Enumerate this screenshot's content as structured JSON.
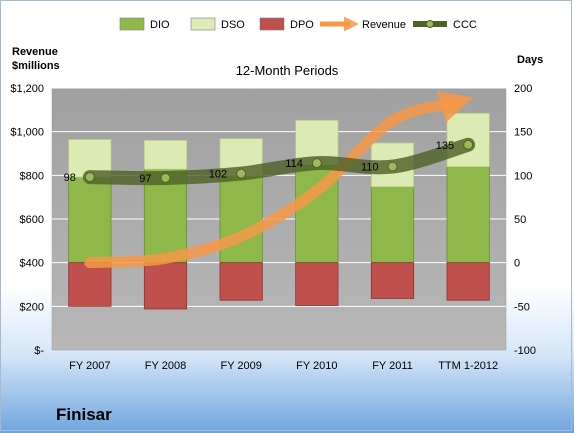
{
  "chart_data": {
    "type": "bar",
    "subtitle": "12-Month Periods",
    "company": "Finisar",
    "categories": [
      "FY 2007",
      "FY 2008",
      "FY 2009",
      "FY 2010",
      "FY 2011",
      "TTM 1-2012"
    ],
    "left_axis": {
      "label": "Revenue\n$millions",
      "ylim": [
        0,
        1200
      ],
      "ticks": [
        0,
        200,
        400,
        600,
        800,
        1000,
        1200
      ],
      "tick_labels": [
        "$-",
        "$200",
        "$400",
        "$600",
        "$800",
        "$1,000",
        "$1,200"
      ]
    },
    "right_axis": {
      "label": "Days",
      "ylim": [
        -100,
        200
      ],
      "ticks": [
        -100,
        -50,
        0,
        50,
        100,
        150,
        200
      ],
      "tick_labels": [
        "-100",
        "-50",
        "0",
        "50",
        "100",
        "150",
        "200"
      ]
    },
    "series": [
      {
        "name": "DIO",
        "kind": "stacked-bar",
        "axis": "right",
        "color": "#8fb84a",
        "values": [
          98,
          107,
          99,
          112,
          87,
          110
        ]
      },
      {
        "name": "DSO",
        "kind": "stacked-bar",
        "axis": "right",
        "color": "#dcebb4",
        "values": [
          43,
          33,
          43,
          51,
          50,
          61
        ]
      },
      {
        "name": "DPO",
        "kind": "negative-bar",
        "axis": "right",
        "color": "#c0504d",
        "values": [
          -50,
          -53,
          -43,
          -49,
          -41,
          -43
        ]
      },
      {
        "name": "Revenue",
        "kind": "arrow-line",
        "axis": "left",
        "color": "#f79646",
        "values": [
          400,
          420,
          520,
          730,
          1050,
          1140
        ]
      },
      {
        "name": "CCC",
        "kind": "line",
        "axis": "right",
        "color": "#4f6228",
        "values": [
          98,
          97,
          102,
          114,
          110,
          135
        ]
      }
    ],
    "data_labels": [
      "98",
      "97",
      "102",
      "114",
      "110",
      "135"
    ],
    "legend_position": "top",
    "grid": true,
    "colors": {
      "plot_background": "#a6a6a6",
      "gridline": "#ffffff"
    }
  }
}
